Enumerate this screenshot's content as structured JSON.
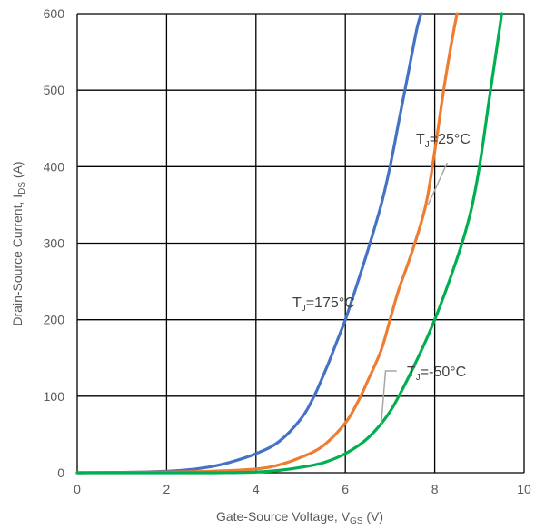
{
  "chart_data": {
    "type": "line",
    "xlabel": {
      "main": "Gate-Source Voltage, V",
      "sub": "GS",
      "unit": " (V)"
    },
    "ylabel": {
      "main": "Drain-Source Current, I",
      "sub": "DS",
      "unit": " (A)"
    },
    "xlim": [
      0,
      10
    ],
    "ylim": [
      0,
      600
    ],
    "xticks": [
      0,
      2,
      4,
      6,
      8,
      10
    ],
    "yticks": [
      0,
      100,
      200,
      300,
      400,
      500,
      600
    ],
    "grid": true,
    "legend": "none",
    "series": [
      {
        "name": "TJ=175°C",
        "label": {
          "pre": "T",
          "sub": "J",
          "post": "=175°C"
        },
        "color": "#4472C4",
        "x": [
          0,
          1,
          2,
          2.5,
          3,
          3.5,
          4,
          4.5,
          5,
          5.3,
          5.6,
          5.8,
          6.0,
          6.2,
          6.5,
          6.8,
          7.0,
          7.2,
          7.4,
          7.6,
          7.7
        ],
        "y": [
          0,
          0.5,
          2,
          4,
          8,
          15,
          25,
          40,
          70,
          100,
          140,
          170,
          200,
          235,
          290,
          350,
          400,
          460,
          520,
          580,
          600
        ]
      },
      {
        "name": "TJ=25°C",
        "label": {
          "pre": "T",
          "sub": "J",
          "post": "=25°C"
        },
        "color": "#ED7D31",
        "x": [
          0,
          2,
          3,
          4,
          4.5,
          5,
          5.5,
          6,
          6.3,
          6.5,
          6.8,
          7.0,
          7.2,
          7.5,
          7.8,
          8.0,
          8.2,
          8.4,
          8.5
        ],
        "y": [
          0,
          1,
          2,
          5,
          10,
          20,
          35,
          65,
          95,
          120,
          160,
          200,
          240,
          290,
          350,
          420,
          500,
          570,
          600
        ]
      },
      {
        "name": "TJ=-50°C",
        "label": {
          "pre": "T",
          "sub": "J",
          "post": "=-50°C"
        },
        "color": "#00B050",
        "x": [
          0,
          3,
          4,
          4.5,
          5,
          5.5,
          6,
          6.5,
          7,
          7.5,
          8,
          8.5,
          8.8,
          9.0,
          9.2,
          9.4,
          9.5
        ],
        "y": [
          0,
          0,
          1,
          3,
          7,
          13,
          25,
          45,
          80,
          135,
          200,
          280,
          340,
          400,
          480,
          560,
          600
        ]
      }
    ]
  }
}
